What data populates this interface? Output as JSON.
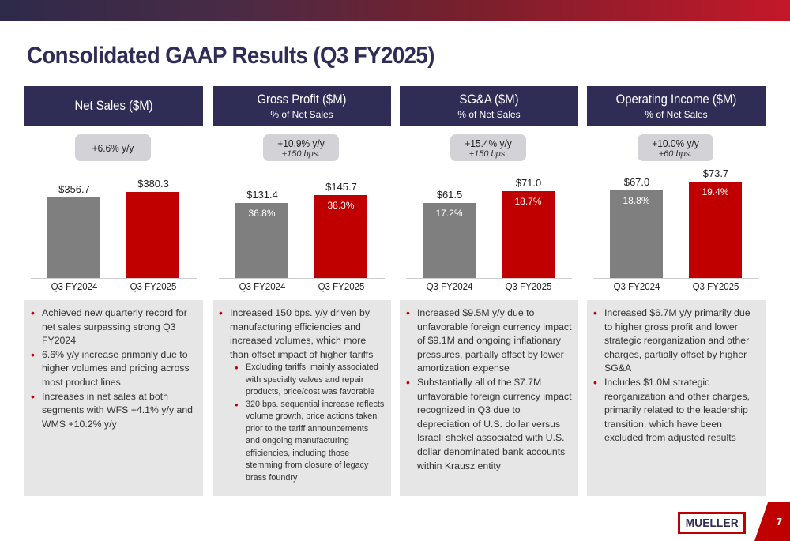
{
  "title": "Consolidated GAAP Results (Q3 FY2025)",
  "page_number": "7",
  "logo_text": "MUELLER",
  "colors": {
    "navy": "#2f2c55",
    "red": "#c00000",
    "gray_bar": "#7f7f7f",
    "panel": "#e6e6e6"
  },
  "panels": [
    {
      "header": "Net Sales ($M)",
      "subheader": "",
      "change": "+6.6% y/y",
      "change_bps": "",
      "notes": [
        {
          "text": "Achieved new quarterly record for net sales surpassing strong Q3 FY2024",
          "sub": []
        },
        {
          "text": "6.6% y/y increase primarily due to higher volumes and pricing across most product lines",
          "sub": []
        },
        {
          "text": "Increases in net sales at both segments with WFS +4.1% y/y and WMS +10.2% y/y",
          "sub": []
        }
      ]
    },
    {
      "header": "Gross Profit ($M)",
      "subheader": "% of Net Sales",
      "change": "+10.9% y/y",
      "change_bps": "+150 bps.",
      "notes": [
        {
          "text": "Increased 150 bps. y/y driven by manufacturing efficiencies and increased volumes, which more than offset impact of higher tariffs",
          "sub": [
            "Excluding tariffs, mainly associated with specialty valves and repair products, price/cost was favorable",
            "320 bps. sequential increase reflects volume growth, price actions taken prior to the tariff announcements and ongoing manufacturing efficiencies, including those stemming from closure of legacy brass foundry"
          ]
        }
      ]
    },
    {
      "header": "SG&A ($M)",
      "subheader": "% of Net Sales",
      "change": "+15.4% y/y",
      "change_bps": "+150 bps.",
      "notes": [
        {
          "text": "Increased $9.5M y/y due to unfavorable foreign currency impact of $9.1M and ongoing inflationary pressures, partially offset by lower amortization expense",
          "sub": []
        },
        {
          "text": "Substantially all of the $7.7M unfavorable foreign currency impact recognized in Q3 due to depreciation of U.S. dollar versus Israeli shekel associated with U.S. dollar denominated bank accounts within Krausz entity",
          "sub": []
        }
      ]
    },
    {
      "header": "Operating Income ($M)",
      "subheader": "% of Net Sales",
      "change": "+10.0% y/y",
      "change_bps": "+60 bps.",
      "notes": [
        {
          "text": "Increased $6.7M y/y primarily due to higher gross profit and lower strategic reorganization and other charges, partially offset by higher SG&A",
          "sub": []
        },
        {
          "text": "Includes $1.0M strategic reorganization and other charges, primarily related to the leadership transition, which have been excluded from adjusted results",
          "sub": []
        }
      ]
    }
  ],
  "chart_data": [
    {
      "type": "bar",
      "title": "Net Sales ($M)",
      "categories": [
        "Q3 FY2024",
        "Q3 FY2025"
      ],
      "values": [
        356.7,
        380.3
      ],
      "value_labels": [
        "$356.7",
        "$380.3"
      ],
      "pct_labels": [
        "",
        ""
      ]
    },
    {
      "type": "bar",
      "title": "Gross Profit ($M)",
      "categories": [
        "Q3 FY2024",
        "Q3 FY2025"
      ],
      "values": [
        131.4,
        145.7
      ],
      "value_labels": [
        "$131.4",
        "$145.7"
      ],
      "pct_labels": [
        "36.8%",
        "38.3%"
      ]
    },
    {
      "type": "bar",
      "title": "SG&A ($M)",
      "categories": [
        "Q3 FY2024",
        "Q3 FY2025"
      ],
      "values": [
        61.5,
        71.0
      ],
      "value_labels": [
        "$61.5",
        "$71.0"
      ],
      "pct_labels": [
        "17.2%",
        "18.7%"
      ]
    },
    {
      "type": "bar",
      "title": "Operating Income ($M)",
      "categories": [
        "Q3 FY2024",
        "Q3 FY2025"
      ],
      "values": [
        67.0,
        73.7
      ],
      "value_labels": [
        "$67.0",
        "$73.7"
      ],
      "pct_labels": [
        "18.8%",
        "19.4%"
      ]
    }
  ]
}
